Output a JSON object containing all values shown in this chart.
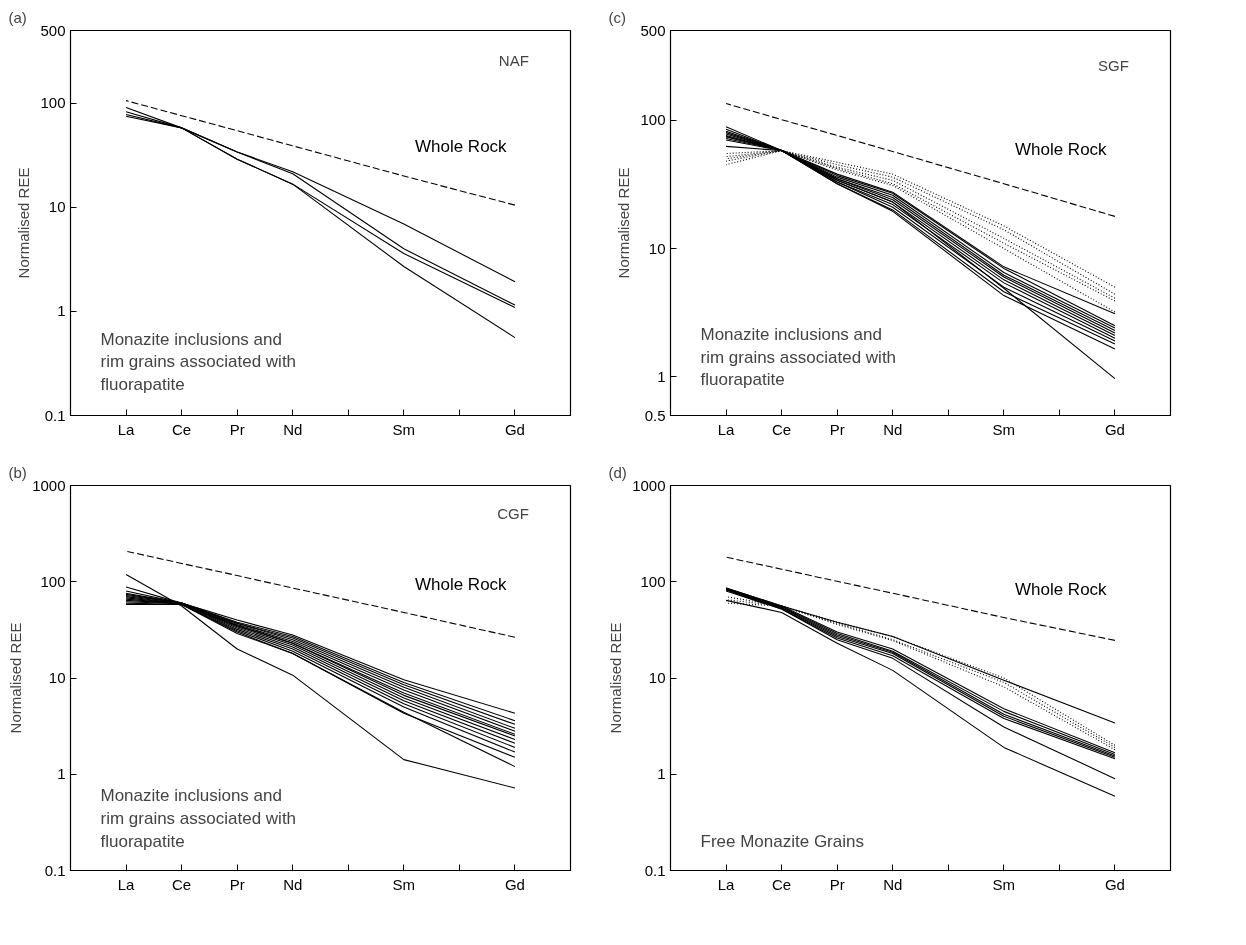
{
  "chart_data": [
    {
      "type": "line",
      "title": "(a)",
      "subtitle": "NAF",
      "ylabel": "Normalised REE",
      "annotations": [
        "Monazite inclusions and\nrim grains associated with\nfluorapatite"
      ],
      "log": "y",
      "categories": [
        "La",
        "Ce",
        "Pr",
        "Nd",
        null,
        "Sm",
        null,
        "Gd"
      ],
      "ylim": [
        0.1,
        500
      ],
      "yticks": [
        0.1,
        1,
        10,
        100,
        500
      ],
      "series": [
        {
          "name": "Whole Rock",
          "color": "#000000",
          "line_style": "dashed",
          "values": [
            106,
            76,
            54.5,
            39,
            null,
            20,
            null,
            10.5
          ]
        },
        {
          "color": "#000000",
          "line_style": "solid",
          "values": [
            91,
            58,
            34,
            22,
            null,
            6.9,
            null,
            1.93
          ]
        },
        {
          "color": "#000000",
          "line_style": "solid",
          "values": [
            83,
            58,
            34,
            21,
            null,
            4.0,
            null,
            1.15
          ]
        },
        {
          "color": "#000000",
          "line_style": "solid",
          "values": [
            78,
            58,
            29,
            16.7,
            null,
            3.6,
            null,
            1.09
          ]
        },
        {
          "color": "#000000",
          "line_style": "solid",
          "values": [
            75,
            58,
            29,
            16.7,
            null,
            2.7,
            null,
            0.56
          ]
        }
      ]
    },
    {
      "type": "line",
      "title": "(c)",
      "subtitle": "SGF",
      "ylabel": "Normalised REE",
      "annotations": [
        "Monazite inclusions and\nrim grains associated with\nfluorapatite"
      ],
      "log": "y",
      "categories": [
        "La",
        "Ce",
        "Pr",
        "Nd",
        null,
        "Sm",
        null,
        "Gd"
      ],
      "ylim": [
        0.5,
        500
      ],
      "yticks": [
        0.5,
        1,
        10,
        100,
        500
      ],
      "series": [
        {
          "name": "Whole Rock",
          "color": "#000000",
          "line_style": "dashed",
          "values": [
            135,
            101,
            76,
            57,
            null,
            32,
            null,
            17.8
          ]
        },
        {
          "color": "#000000",
          "line_style": "solid",
          "values": [
            89,
            58,
            38,
            27.5,
            null,
            7.2,
            null,
            3.1
          ]
        },
        {
          "color": "#000000",
          "line_style": "solid",
          "values": [
            85,
            58,
            37,
            27,
            null,
            7.0,
            null,
            2.5
          ]
        },
        {
          "color": "#000000",
          "line_style": "solid",
          "values": [
            82,
            58,
            36,
            26,
            null,
            6.5,
            null,
            2.4
          ]
        },
        {
          "color": "#000000",
          "line_style": "solid",
          "values": [
            80,
            58,
            35,
            25,
            null,
            6.2,
            null,
            2.3
          ]
        },
        {
          "color": "#000000",
          "line_style": "solid",
          "values": [
            78,
            58,
            35,
            24,
            null,
            6.0,
            null,
            2.2
          ]
        },
        {
          "color": "#000000",
          "line_style": "solid",
          "values": [
            76,
            58,
            34,
            23,
            null,
            5.7,
            null,
            2.1
          ]
        },
        {
          "color": "#000000",
          "line_style": "solid",
          "values": [
            74,
            58,
            33,
            22,
            null,
            5.4,
            null,
            2.0
          ]
        },
        {
          "color": "#000000",
          "line_style": "solid",
          "values": [
            72,
            58,
            33,
            21,
            null,
            5.0,
            null,
            1.9
          ]
        },
        {
          "color": "#000000",
          "line_style": "solid",
          "values": [
            70,
            58,
            32,
            20,
            null,
            4.6,
            null,
            1.8
          ]
        },
        {
          "color": "#000000",
          "line_style": "solid",
          "values": [
            62.5,
            58,
            32,
            19.5,
            null,
            4.3,
            null,
            1.65
          ]
        },
        {
          "color": "#000000",
          "line_style": "solid",
          "values": [
            75,
            58,
            34,
            23,
            null,
            4.9,
            null,
            0.97
          ]
        },
        {
          "color": "#000000",
          "line_style": "dotted",
          "values": [
            55,
            58,
            47,
            38,
            null,
            15,
            null,
            5.0
          ]
        },
        {
          "color": "#000000",
          "line_style": "dotted",
          "values": [
            52,
            58,
            45,
            36,
            null,
            14,
            null,
            4.4
          ]
        },
        {
          "color": "#000000",
          "line_style": "dotted",
          "values": [
            50,
            58,
            43,
            34,
            null,
            12,
            null,
            4.1
          ]
        },
        {
          "color": "#000000",
          "line_style": "dotted",
          "values": [
            48,
            58,
            42,
            32,
            null,
            11,
            null,
            3.9
          ]
        },
        {
          "color": "#000000",
          "line_style": "dotted",
          "values": [
            45,
            58,
            41,
            31,
            null,
            10,
            null,
            3.2
          ]
        }
      ]
    },
    {
      "type": "line",
      "title": "(b)",
      "subtitle": "CGF",
      "ylabel": "Normalised REE",
      "annotations": [
        "Monazite inclusions and\nrim grains associated with\nfluorapatite"
      ],
      "log": "y",
      "categories": [
        "La",
        "Ce",
        "Pr",
        "Nd",
        null,
        "Sm",
        null,
        "Gd"
      ],
      "ylim": [
        0.1,
        1000
      ],
      "yticks": [
        0.1,
        1,
        10,
        100,
        1000
      ],
      "series": [
        {
          "name": "Whole Rock",
          "color": "#000000",
          "line_style": "dashed",
          "values": [
            208,
            155,
            116,
            86,
            null,
            48,
            null,
            26.5
          ]
        },
        {
          "color": "#000000",
          "line_style": "solid",
          "values": [
            88,
            60,
            40,
            28,
            null,
            9.6,
            null,
            4.3
          ]
        },
        {
          "color": "#000000",
          "line_style": "solid",
          "values": [
            80,
            60,
            38,
            27,
            null,
            9.0,
            null,
            3.6
          ]
        },
        {
          "color": "#000000",
          "line_style": "solid",
          "values": [
            76,
            60,
            37,
            26,
            null,
            8.5,
            null,
            3.3
          ]
        },
        {
          "color": "#000000",
          "line_style": "solid",
          "values": [
            74,
            60,
            37,
            25,
            null,
            8.0,
            null,
            3.0
          ]
        },
        {
          "color": "#000000",
          "line_style": "solid",
          "values": [
            72,
            60,
            36,
            24,
            null,
            7.5,
            null,
            2.8
          ]
        },
        {
          "color": "#000000",
          "line_style": "solid",
          "values": [
            70,
            59,
            35,
            23,
            null,
            7.0,
            null,
            2.6
          ]
        },
        {
          "color": "#000000",
          "line_style": "solid",
          "values": [
            68,
            59,
            35,
            23,
            null,
            6.6,
            null,
            2.5
          ]
        },
        {
          "color": "#000000",
          "line_style": "solid",
          "values": [
            66,
            59,
            34,
            22,
            null,
            6.2,
            null,
            2.3
          ]
        },
        {
          "color": "#000000",
          "line_style": "solid",
          "values": [
            64,
            59,
            33,
            21,
            null,
            5.8,
            null,
            2.1
          ]
        },
        {
          "color": "#000000",
          "line_style": "solid",
          "values": [
            62,
            59,
            32,
            20,
            null,
            5.4,
            null,
            1.9
          ]
        },
        {
          "color": "#000000",
          "line_style": "solid",
          "values": [
            60,
            58,
            31,
            19,
            null,
            5.0,
            null,
            1.7
          ]
        },
        {
          "color": "#000000",
          "line_style": "solid",
          "values": [
            58,
            58,
            30,
            18,
            null,
            4.3,
            null,
            1.5
          ]
        },
        {
          "color": "#000000",
          "line_style": "solid",
          "values": [
            58,
            58,
            29,
            18,
            null,
            4.4,
            null,
            1.2
          ]
        },
        {
          "color": "#000000",
          "line_style": "solid",
          "values": [
            119,
            56,
            20,
            10.7,
            null,
            1.42,
            null,
            0.72
          ]
        }
      ]
    },
    {
      "type": "line",
      "title": "(d)",
      "ylabel": "Normalised REE",
      "annotations": [
        "Free Monazite Grains"
      ],
      "log": "y",
      "categories": [
        "La",
        "Ce",
        "Pr",
        "Nd",
        null,
        "Sm",
        null,
        "Gd"
      ],
      "ylim": [
        0.1,
        1000
      ],
      "yticks": [
        0.1,
        1,
        10,
        100,
        1000
      ],
      "series": [
        {
          "name": "Whole Rock",
          "color": "#000000",
          "line_style": "dashed",
          "values": [
            180,
            135,
            101,
            76,
            null,
            42.5,
            null,
            24.6
          ]
        },
        {
          "color": "#000000",
          "line_style": "solid",
          "values": [
            86,
            56,
            38,
            27,
            null,
            9.5,
            null,
            3.4
          ]
        },
        {
          "color": "#000000",
          "line_style": "solid",
          "values": [
            86,
            56,
            30,
            20,
            null,
            4.8,
            null,
            1.67
          ]
        },
        {
          "color": "#000000",
          "line_style": "solid",
          "values": [
            85,
            55,
            29,
            19,
            null,
            4.5,
            null,
            1.6
          ]
        },
        {
          "color": "#000000",
          "line_style": "solid",
          "values": [
            84,
            54,
            28,
            18.5,
            null,
            4.2,
            null,
            1.55
          ]
        },
        {
          "color": "#000000",
          "line_style": "solid",
          "values": [
            83,
            53,
            27,
            18,
            null,
            4.0,
            null,
            1.5
          ]
        },
        {
          "color": "#000000",
          "line_style": "solid",
          "values": [
            82,
            52,
            26,
            17,
            null,
            3.8,
            null,
            1.45
          ]
        },
        {
          "color": "#000000",
          "line_style": "solid",
          "values": [
            80,
            52,
            25,
            16,
            null,
            3.1,
            null,
            0.9
          ]
        },
        {
          "color": "#000000",
          "line_style": "solid",
          "values": [
            64,
            48,
            23,
            12,
            null,
            1.9,
            null,
            0.59
          ]
        },
        {
          "color": "#000000",
          "line_style": "dotted",
          "values": [
            70,
            56,
            38,
            27,
            null,
            10,
            null,
            2.0
          ]
        },
        {
          "color": "#000000",
          "line_style": "dotted",
          "values": [
            65,
            56,
            37,
            25,
            null,
            9,
            null,
            1.9
          ]
        },
        {
          "color": "#000000",
          "line_style": "dotted",
          "values": [
            60,
            56,
            36,
            24.5,
            null,
            8.1,
            null,
            1.8
          ]
        }
      ]
    }
  ]
}
